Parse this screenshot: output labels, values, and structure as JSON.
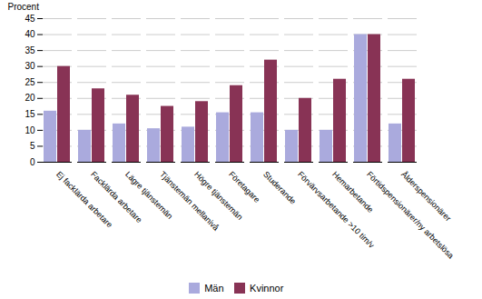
{
  "chart_data": {
    "type": "bar",
    "categories": [
      "Ej facklärda arbetare",
      "Facklärda arbetare",
      "Lägre tjänstemän",
      "Tjänstemän mellanivå",
      "Högre tjänstemän",
      "Företagare",
      "Studerande",
      "Förvärvsarbetande >10 tim/v",
      "Hemarbetande",
      "Förtidspensionärer/ny arbetslösa",
      "Ålderspensionärer"
    ],
    "series": [
      {
        "name": "Män",
        "color": "#aaaadd",
        "values": [
          16,
          10,
          12,
          10.5,
          11,
          15.5,
          15.5,
          10,
          10,
          40,
          12
        ]
      },
      {
        "name": "Kvinnor",
        "color": "#883355",
        "values": [
          30,
          23,
          21,
          17.5,
          19,
          24,
          32,
          20,
          26,
          40,
          26
        ]
      }
    ],
    "ylabel": "Procent",
    "ylim": [
      0,
      45
    ],
    "yticks": [
      0,
      5,
      10,
      15,
      20,
      25,
      30,
      35,
      40,
      45
    ],
    "grid": true,
    "legend": "bottom"
  }
}
